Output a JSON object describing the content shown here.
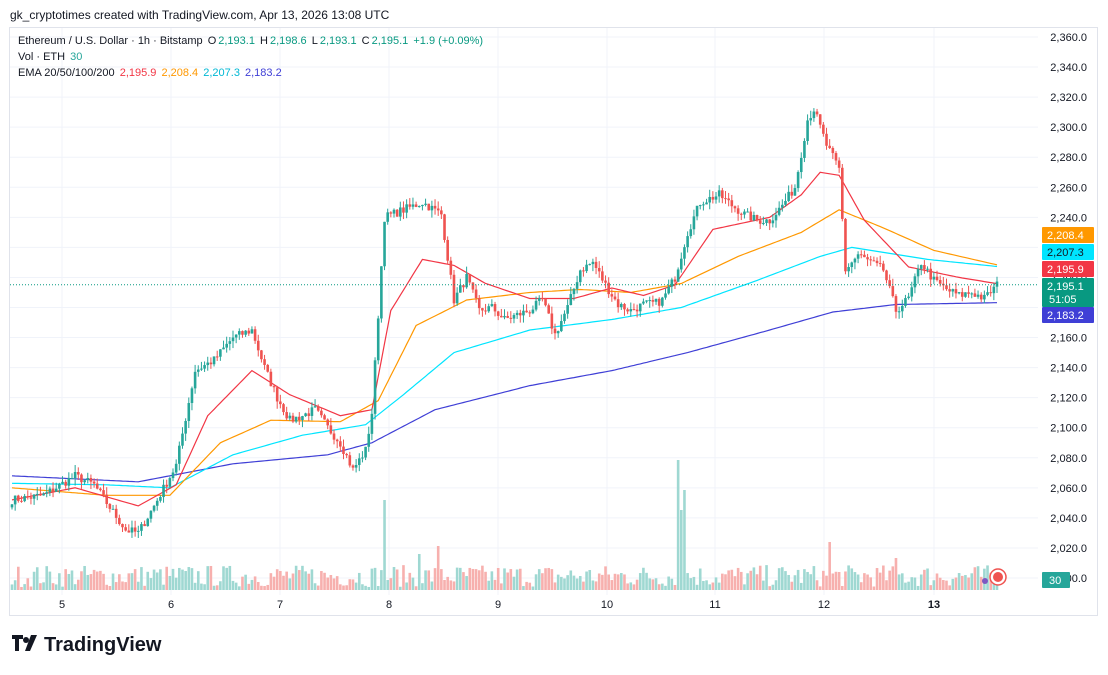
{
  "header": {
    "caption": "gk_cryptotimes created with TradingView.com, Apr 13, 2026 13:08 UTC"
  },
  "legend": {
    "symbol": "Ethereum / U.S. Dollar · 1h · Bitstamp",
    "o_label": "O",
    "o": "2,193.1",
    "h_label": "H",
    "h": "2,198.6",
    "l_label": "L",
    "l": "2,193.1",
    "c_label": "C",
    "c": "2,195.1",
    "change": "+1.9 (+0.09%)",
    "vol_label": "Vol · ETH",
    "vol": "30",
    "ema_label": "EMA 20/50/100/200",
    "ema20": "2,195.9",
    "ema50": "2,208.4",
    "ema100": "2,207.3",
    "ema200": "2,183.2"
  },
  "footer": {
    "brand": "TradingView",
    "logo_icon": "tradingview-logo-icon"
  },
  "colors": {
    "up": "#26a69a",
    "down": "#ef5350",
    "up_vol": "#9fd8d2",
    "down_vol": "#f7b0ae",
    "ema20": "#f23645",
    "ema50": "#ff9800",
    "ema100": "#00e5ff",
    "ema200": "#3f3fd6",
    "last_price": "#089981",
    "grid": "#f0f3fa",
    "text": "#131722"
  },
  "chart_data": {
    "type": "candlestick",
    "title": "Ethereum / U.S. Dollar · 1h · Bitstamp",
    "timeframe": "1h",
    "x_ticks": [
      "5",
      "6",
      "7",
      "8",
      "9",
      "10",
      "11",
      "12",
      "13"
    ],
    "y_ticks": [
      "2,360.0",
      "2,340.0",
      "2,320.0",
      "2,300.0",
      "2,280.0",
      "2,260.0",
      "2,240.0",
      "2,220.0",
      "2,200.0",
      "2,180.0",
      "2,160.0",
      "2,140.0",
      "2,120.0",
      "2,100.0",
      "2,080.0",
      "2,060.0",
      "2,040.0",
      "2,020.0",
      "2,000.0"
    ],
    "ylim": [
      2000,
      2360
    ],
    "price_tags": [
      {
        "label": "2,208.4",
        "value": 2208.4,
        "series": "EMA 50"
      },
      {
        "label": "2,207.3",
        "value": 2207.3,
        "series": "EMA 100"
      },
      {
        "label": "2,195.9",
        "value": 2195.9,
        "series": "EMA 20"
      },
      {
        "label": "2,195.1",
        "value": 2195.1,
        "series": "Last price",
        "countdown": "51:05"
      },
      {
        "label": "2,183.2",
        "value": 2183.2,
        "series": "EMA 200"
      }
    ],
    "volume_tag": "30",
    "anchors": {
      "price": [
        [
          0,
          2052
        ],
        [
          10,
          2055
        ],
        [
          20,
          2068
        ],
        [
          26,
          2062
        ],
        [
          30,
          2050
        ],
        [
          36,
          2032
        ],
        [
          40,
          2030
        ],
        [
          45,
          2048
        ],
        [
          52,
          2075
        ],
        [
          58,
          2138
        ],
        [
          64,
          2145
        ],
        [
          70,
          2160
        ],
        [
          76,
          2165
        ],
        [
          80,
          2140
        ],
        [
          84,
          2120
        ],
        [
          88,
          2105
        ],
        [
          92,
          2108
        ],
        [
          96,
          2112
        ],
        [
          100,
          2100
        ],
        [
          104,
          2090
        ],
        [
          108,
          2072
        ],
        [
          112,
          2085
        ],
        [
          114,
          2110
        ],
        [
          118,
          2240
        ],
        [
          124,
          2245
        ],
        [
          130,
          2250
        ],
        [
          136,
          2242
        ],
        [
          140,
          2185
        ],
        [
          144,
          2200
        ],
        [
          148,
          2178
        ],
        [
          152,
          2180
        ],
        [
          156,
          2172
        ],
        [
          160,
          2175
        ],
        [
          164,
          2178
        ],
        [
          168,
          2185
        ],
        [
          172,
          2162
        ],
        [
          176,
          2180
        ],
        [
          180,
          2205
        ],
        [
          184,
          2210
        ],
        [
          188,
          2195
        ],
        [
          192,
          2182
        ],
        [
          196,
          2178
        ],
        [
          200,
          2182
        ],
        [
          204,
          2183
        ],
        [
          206,
          2185
        ],
        [
          210,
          2200
        ],
        [
          214,
          2230
        ],
        [
          218,
          2250
        ],
        [
          224,
          2255
        ],
        [
          228,
          2248
        ],
        [
          232,
          2242
        ],
        [
          236,
          2238
        ],
        [
          240,
          2238
        ],
        [
          244,
          2248
        ],
        [
          248,
          2260
        ],
        [
          252,
          2305
        ],
        [
          254,
          2312
        ],
        [
          258,
          2288
        ],
        [
          262,
          2272
        ],
        [
          264,
          2205
        ],
        [
          268,
          2215
        ],
        [
          272,
          2210
        ],
        [
          276,
          2205
        ],
        [
          280,
          2178
        ],
        [
          284,
          2186
        ],
        [
          288,
          2210
        ],
        [
          292,
          2198
        ],
        [
          296,
          2192
        ],
        [
          300,
          2188
        ],
        [
          304,
          2190
        ],
        [
          308,
          2186
        ],
        [
          312,
          2195
        ]
      ],
      "ema20": [
        [
          0,
          2052
        ],
        [
          20,
          2060
        ],
        [
          40,
          2048
        ],
        [
          52,
          2062
        ],
        [
          62,
          2108
        ],
        [
          76,
          2138
        ],
        [
          88,
          2122
        ],
        [
          104,
          2108
        ],
        [
          114,
          2112
        ],
        [
          120,
          2178
        ],
        [
          130,
          2212
        ],
        [
          140,
          2208
        ],
        [
          150,
          2196
        ],
        [
          164,
          2186
        ],
        [
          178,
          2186
        ],
        [
          190,
          2193
        ],
        [
          200,
          2188
        ],
        [
          210,
          2195
        ],
        [
          222,
          2232
        ],
        [
          240,
          2240
        ],
        [
          250,
          2255
        ],
        [
          256,
          2270
        ],
        [
          262,
          2268
        ],
        [
          270,
          2238
        ],
        [
          284,
          2207
        ],
        [
          300,
          2200
        ],
        [
          312,
          2195.9
        ]
      ],
      "ema50": [
        [
          0,
          2060
        ],
        [
          30,
          2055
        ],
        [
          50,
          2055
        ],
        [
          66,
          2090
        ],
        [
          82,
          2105
        ],
        [
          104,
          2104
        ],
        [
          116,
          2118
        ],
        [
          128,
          2168
        ],
        [
          144,
          2185
        ],
        [
          164,
          2190
        ],
        [
          180,
          2192
        ],
        [
          196,
          2190
        ],
        [
          212,
          2196
        ],
        [
          230,
          2214
        ],
        [
          250,
          2230
        ],
        [
          262,
          2245
        ],
        [
          276,
          2233
        ],
        [
          292,
          2218
        ],
        [
          312,
          2208.4
        ]
      ],
      "ema100": [
        [
          0,
          2063
        ],
        [
          30,
          2062
        ],
        [
          50,
          2060
        ],
        [
          70,
          2082
        ],
        [
          92,
          2095
        ],
        [
          112,
          2102
        ],
        [
          124,
          2122
        ],
        [
          140,
          2150
        ],
        [
          164,
          2165
        ],
        [
          190,
          2172
        ],
        [
          212,
          2180
        ],
        [
          236,
          2198
        ],
        [
          256,
          2214
        ],
        [
          266,
          2220
        ],
        [
          290,
          2212
        ],
        [
          312,
          2207.3
        ]
      ],
      "ema200": [
        [
          0,
          2068
        ],
        [
          40,
          2064
        ],
        [
          70,
          2076
        ],
        [
          100,
          2082
        ],
        [
          114,
          2090
        ],
        [
          134,
          2112
        ],
        [
          164,
          2128
        ],
        [
          190,
          2138
        ],
        [
          214,
          2150
        ],
        [
          240,
          2165
        ],
        [
          260,
          2177
        ],
        [
          280,
          2182
        ],
        [
          312,
          2183.2
        ]
      ]
    },
    "volume_spikes": [
      [
        118,
        45
      ],
      [
        129,
        18
      ],
      [
        135,
        22
      ],
      [
        211,
        65
      ],
      [
        212,
        40
      ],
      [
        213,
        50
      ],
      [
        259,
        24
      ],
      [
        280,
        16
      ]
    ]
  }
}
